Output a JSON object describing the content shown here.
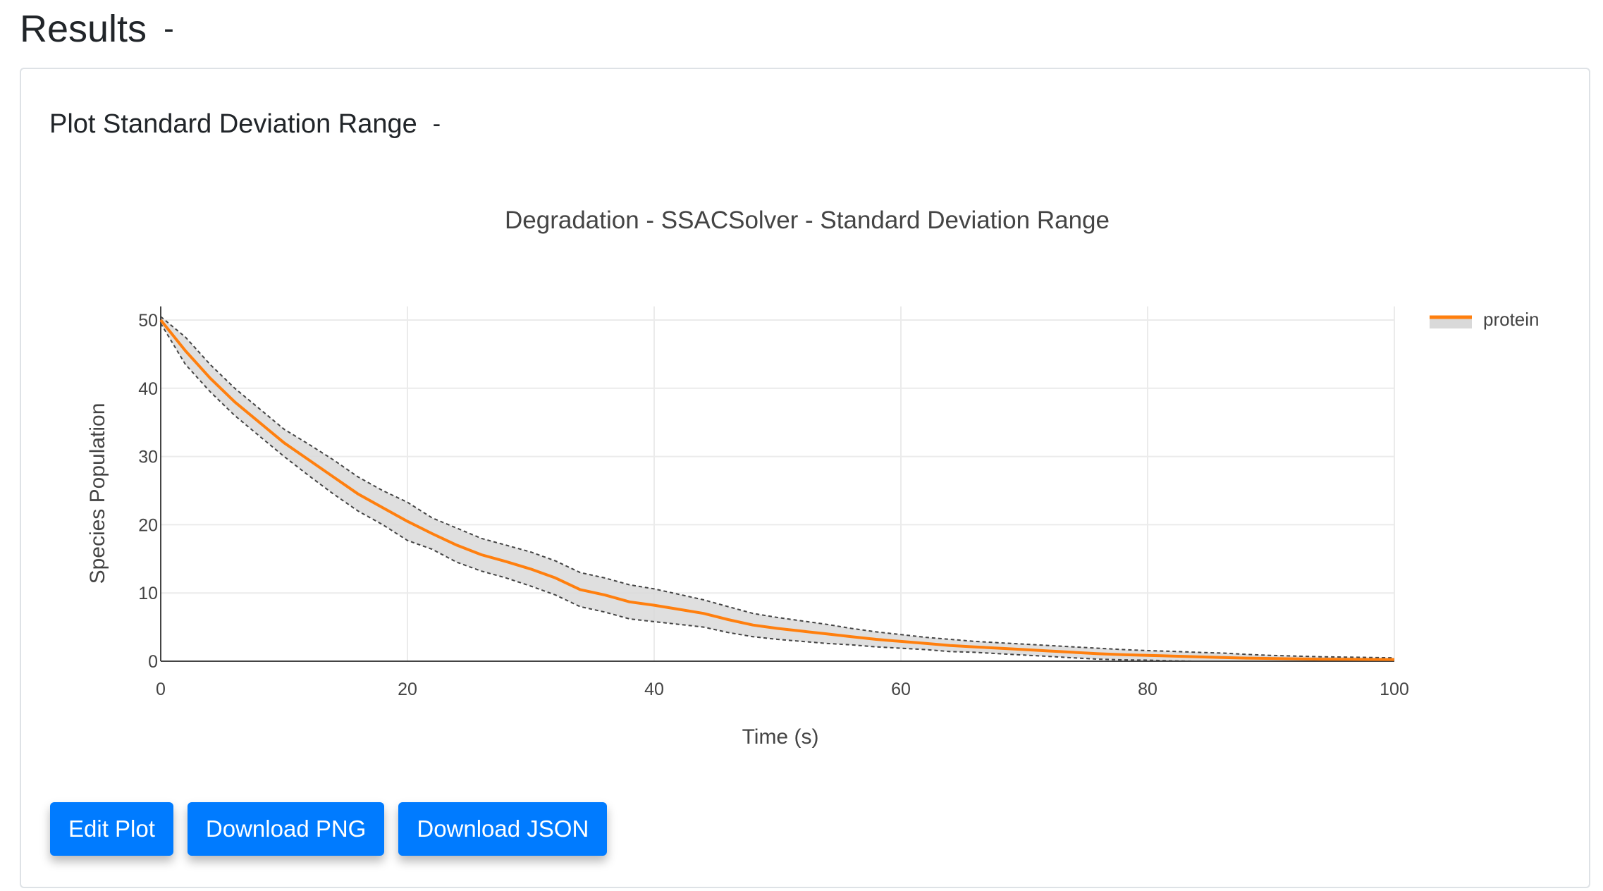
{
  "page": {
    "title": "Results",
    "collapse_label": "-"
  },
  "card": {
    "title": "Plot Standard Deviation Range",
    "collapse_label": "-"
  },
  "buttons": {
    "edit": "Edit Plot",
    "png": "Download PNG",
    "json": "Download JSON"
  },
  "chart_data": {
    "type": "line",
    "title": "Degradation - SSACSolver - Standard Deviation Range",
    "xlabel": "Time (s)",
    "ylabel": "Species Population",
    "xlim": [
      0,
      100
    ],
    "ylim": [
      0,
      52
    ],
    "xticks": [
      0,
      20,
      40,
      60,
      80,
      100
    ],
    "yticks": [
      0,
      10,
      20,
      30,
      40,
      50
    ],
    "grid": true,
    "legend": "top-right",
    "colors": {
      "mean": "#ff7f0e",
      "band": "#d9d9d9",
      "bounds": "#444444"
    },
    "series": [
      {
        "name": "protein",
        "x": [
          0,
          2,
          4,
          6,
          8,
          10,
          12,
          14,
          16,
          18,
          20,
          22,
          24,
          26,
          28,
          30,
          32,
          34,
          36,
          38,
          40,
          42,
          44,
          46,
          48,
          50,
          52,
          54,
          56,
          58,
          60,
          62,
          64,
          66,
          68,
          70,
          72,
          74,
          76,
          78,
          80,
          82,
          84,
          86,
          88,
          90,
          92,
          94,
          96,
          98,
          100
        ],
        "mean": [
          50,
          45.5,
          41.5,
          38,
          35,
          32,
          29.5,
          27,
          24.5,
          22.5,
          20.5,
          18.7,
          17,
          15.6,
          14.6,
          13.5,
          12.2,
          10.5,
          9.7,
          8.7,
          8.2,
          7.6,
          7.0,
          6.1,
          5.3,
          4.8,
          4.4,
          4.0,
          3.6,
          3.2,
          2.9,
          2.6,
          2.3,
          2.1,
          1.9,
          1.7,
          1.5,
          1.3,
          1.1,
          0.95,
          0.85,
          0.75,
          0.65,
          0.55,
          0.45,
          0.4,
          0.35,
          0.3,
          0.28,
          0.26,
          0.25
        ],
        "upper": [
          50.5,
          47.5,
          43.5,
          40,
          37,
          34,
          31.8,
          29.5,
          27,
          25,
          23.3,
          21,
          19.5,
          18,
          17,
          16,
          14.7,
          13,
          12.2,
          11.2,
          10.6,
          9.8,
          9.0,
          8.0,
          7.0,
          6.4,
          5.9,
          5.4,
          4.8,
          4.3,
          3.9,
          3.5,
          3.2,
          2.9,
          2.7,
          2.5,
          2.3,
          2.1,
          1.9,
          1.7,
          1.55,
          1.45,
          1.3,
          1.2,
          1.0,
          0.85,
          0.75,
          0.65,
          0.6,
          0.55,
          0.5
        ],
        "lower": [
          49.5,
          43.5,
          39.5,
          36,
          33,
          30,
          27.2,
          24.5,
          22,
          20,
          17.7,
          16.4,
          14.5,
          13.2,
          12.2,
          11,
          9.7,
          8,
          7.2,
          6.2,
          5.8,
          5.4,
          5.0,
          4.2,
          3.6,
          3.2,
          2.9,
          2.6,
          2.4,
          2.1,
          1.9,
          1.7,
          1.4,
          1.3,
          1.1,
          0.9,
          0.7,
          0.5,
          0.3,
          0.2,
          0.15,
          0.05,
          0,
          0,
          0,
          0,
          0,
          0,
          0,
          0,
          0
        ]
      }
    ]
  }
}
